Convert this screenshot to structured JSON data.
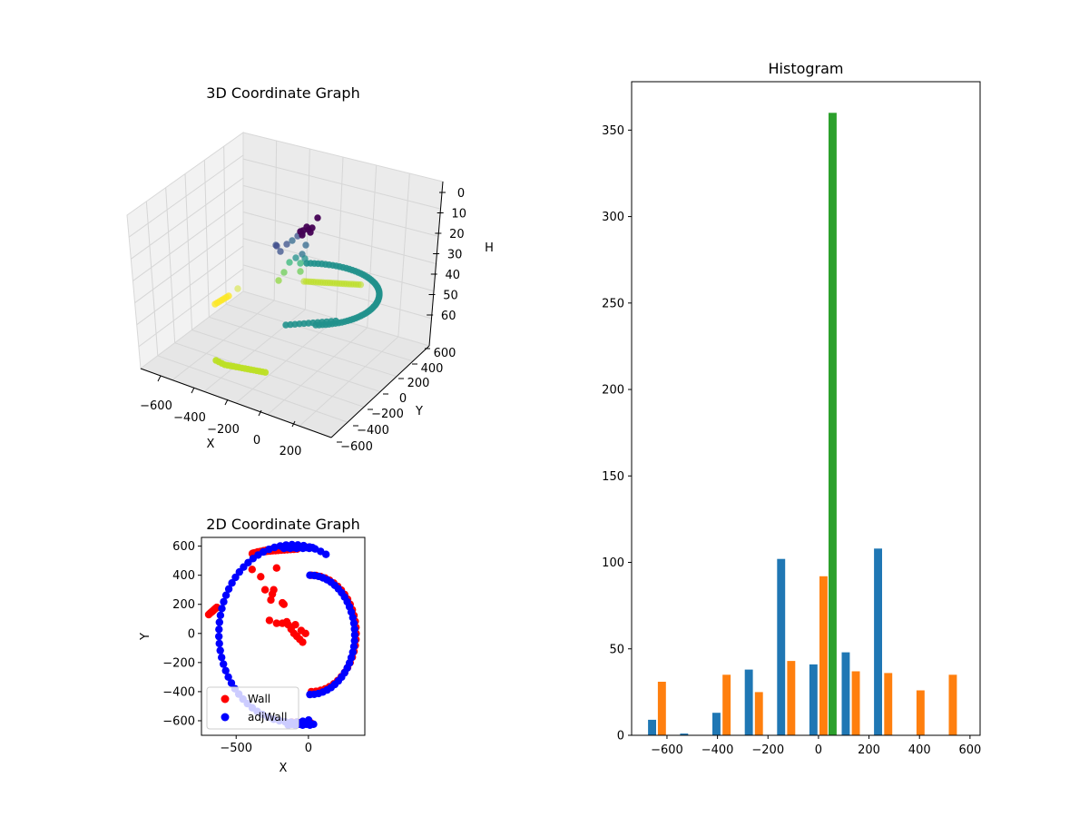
{
  "chart_data": [
    {
      "type": "scatter",
      "projection": "3d",
      "title": "3D Coordinate Graph",
      "xlabel": "X",
      "ylabel": "Y",
      "zlabel": "H",
      "xticks": [
        -600,
        -400,
        -200,
        0,
        200
      ],
      "yticks": [
        -600,
        -400,
        -200,
        0,
        200,
        400,
        600
      ],
      "zticks": [
        0,
        10,
        20,
        30,
        40,
        50,
        60
      ],
      "z_inverted": true,
      "colormap": "viridis",
      "grid": true
    },
    {
      "type": "scatter",
      "title": "2D Coordinate Graph",
      "xlabel": "X",
      "ylabel": "Y",
      "xlim": [
        -740,
        390
      ],
      "ylim": [
        -700,
        660
      ],
      "xticks": [
        -500,
        0
      ],
      "yticks": [
        -600,
        -400,
        -200,
        0,
        200,
        400,
        600
      ],
      "legend_position": "lower left",
      "series": [
        {
          "name": "Wall",
          "color": "#ff0000"
        },
        {
          "name": "adjWall",
          "color": "#0000ff"
        }
      ]
    },
    {
      "type": "bar",
      "title": "Histogram",
      "xlabel": "",
      "ylabel": "",
      "xlim": [
        -740,
        640
      ],
      "ylim": [
        0,
        378
      ],
      "xticks": [
        -600,
        -400,
        -200,
        0,
        200,
        400,
        600
      ],
      "yticks": [
        0,
        50,
        100,
        150,
        200,
        250,
        300,
        350
      ],
      "bin_width": 64,
      "series": [
        {
          "color": "#1f77b4",
          "x": [
            -659,
            -532,
            -404,
            -276,
            -148,
            -20,
            108,
            236
          ],
          "values": [
            9,
            1,
            13,
            38,
            102,
            41,
            48,
            108
          ]
        },
        {
          "color": "#ff7f0e",
          "x": [
            -620,
            -364,
            -236,
            -108,
            20,
            148,
            276,
            404,
            532
          ],
          "values": [
            31,
            35,
            25,
            43,
            92,
            37,
            36,
            26,
            35
          ]
        },
        {
          "color": "#2ca02c",
          "x": [
            56
          ],
          "values": [
            360
          ]
        }
      ]
    }
  ]
}
